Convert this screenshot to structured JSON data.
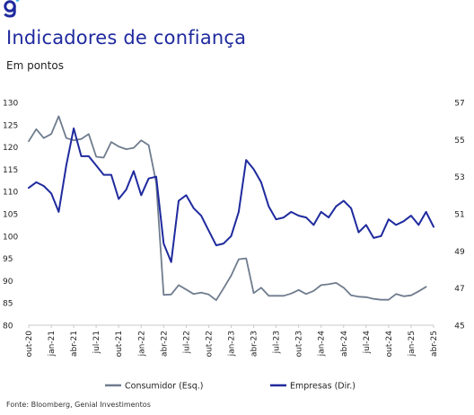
{
  "header": {
    "title": "Indicadores de confiança",
    "subtitle": "Em pontos",
    "logo_icon": "genial-g-icon",
    "accent_color": "#1f2a9e"
  },
  "footer": {
    "source": "Fonte: Bloomberg, Genial Investimentos"
  },
  "chart_data": {
    "type": "line",
    "title": "Indicadores de confiança",
    "subtitle": "Em pontos",
    "xlabel": "",
    "ylabel": "",
    "grid": false,
    "legend": "bottom",
    "x_ticks": [
      "out-20",
      "jan-21",
      "abr-21",
      "jul-21",
      "out-21",
      "jan-22",
      "abr-22",
      "jul-22",
      "out-22",
      "jan-23",
      "abr-23",
      "jul-23",
      "out-23",
      "jan-24",
      "abr-24",
      "jul-24",
      "out-24",
      "jan-25",
      "abr-25"
    ],
    "x": [
      "out-20",
      "nov-20",
      "dez-20",
      "jan-21",
      "fev-21",
      "mar-21",
      "abr-21",
      "mai-21",
      "jun-21",
      "jul-21",
      "ago-21",
      "set-21",
      "out-21",
      "nov-21",
      "dez-21",
      "jan-22",
      "fev-22",
      "mar-22",
      "abr-22",
      "mai-22",
      "jun-22",
      "jul-22",
      "ago-22",
      "set-22",
      "out-22",
      "nov-22",
      "dez-22",
      "jan-23",
      "fev-23",
      "mar-23",
      "abr-23",
      "mai-23",
      "jun-23",
      "jul-23",
      "ago-23",
      "set-23",
      "out-23",
      "nov-23",
      "dez-23",
      "jan-24",
      "fev-24",
      "mar-24",
      "abr-24",
      "mai-24",
      "jun-24",
      "jul-24",
      "ago-24",
      "set-24",
      "out-24",
      "nov-24",
      "dez-24",
      "jan-25",
      "fev-25",
      "mar-25",
      "abr-25"
    ],
    "y_left": {
      "ticks": [
        "80",
        "85",
        "90",
        "95",
        "100",
        "105",
        "110",
        "115",
        "120",
        "125",
        "130"
      ],
      "lim": [
        80,
        130
      ]
    },
    "y_right": {
      "ticks": [
        "45",
        "47",
        "49",
        "51",
        "53",
        "55",
        "57"
      ],
      "lim": [
        45,
        57
      ]
    },
    "series": [
      {
        "name": "Consumidor (Esq.)",
        "axis": "left",
        "color": "#6f7c8e",
        "values": [
          121.3,
          124.0,
          122.0,
          122.9,
          126.9,
          122.0,
          121.5,
          121.8,
          122.9,
          117.8,
          117.6,
          121.1,
          120.1,
          119.5,
          119.8,
          121.5,
          120.4,
          112.0,
          86.8,
          86.9,
          89.0,
          88.0,
          87.0,
          87.3,
          86.9,
          85.6,
          88.3,
          91.1,
          94.8,
          95.0,
          87.2,
          88.4,
          86.6,
          86.6,
          86.6,
          87.1,
          87.9,
          87.0,
          87.7,
          89.0,
          89.2,
          89.5,
          88.4,
          86.7,
          86.4,
          86.3,
          85.9,
          85.7,
          85.7,
          87.0,
          86.5,
          86.7,
          87.6,
          88.6,
          null
        ]
      },
      {
        "name": "Empresas (Dir.)",
        "axis": "right",
        "color": "#1f2a9e",
        "values": [
          52.4,
          52.7,
          52.5,
          52.1,
          51.1,
          53.6,
          55.6,
          54.1,
          54.1,
          53.6,
          53.1,
          53.1,
          51.8,
          52.3,
          53.3,
          52.0,
          52.9,
          53.0,
          49.4,
          48.4,
          51.7,
          52.0,
          51.3,
          50.9,
          50.1,
          49.3,
          49.4,
          49.8,
          51.1,
          53.9,
          53.4,
          52.7,
          51.4,
          50.7,
          50.8,
          51.1,
          50.9,
          50.8,
          50.4,
          51.1,
          50.8,
          51.4,
          51.7,
          51.3,
          50.0,
          50.4,
          49.7,
          49.8,
          50.7,
          50.4,
          50.6,
          50.9,
          50.4,
          51.1,
          50.3
        ]
      }
    ]
  }
}
